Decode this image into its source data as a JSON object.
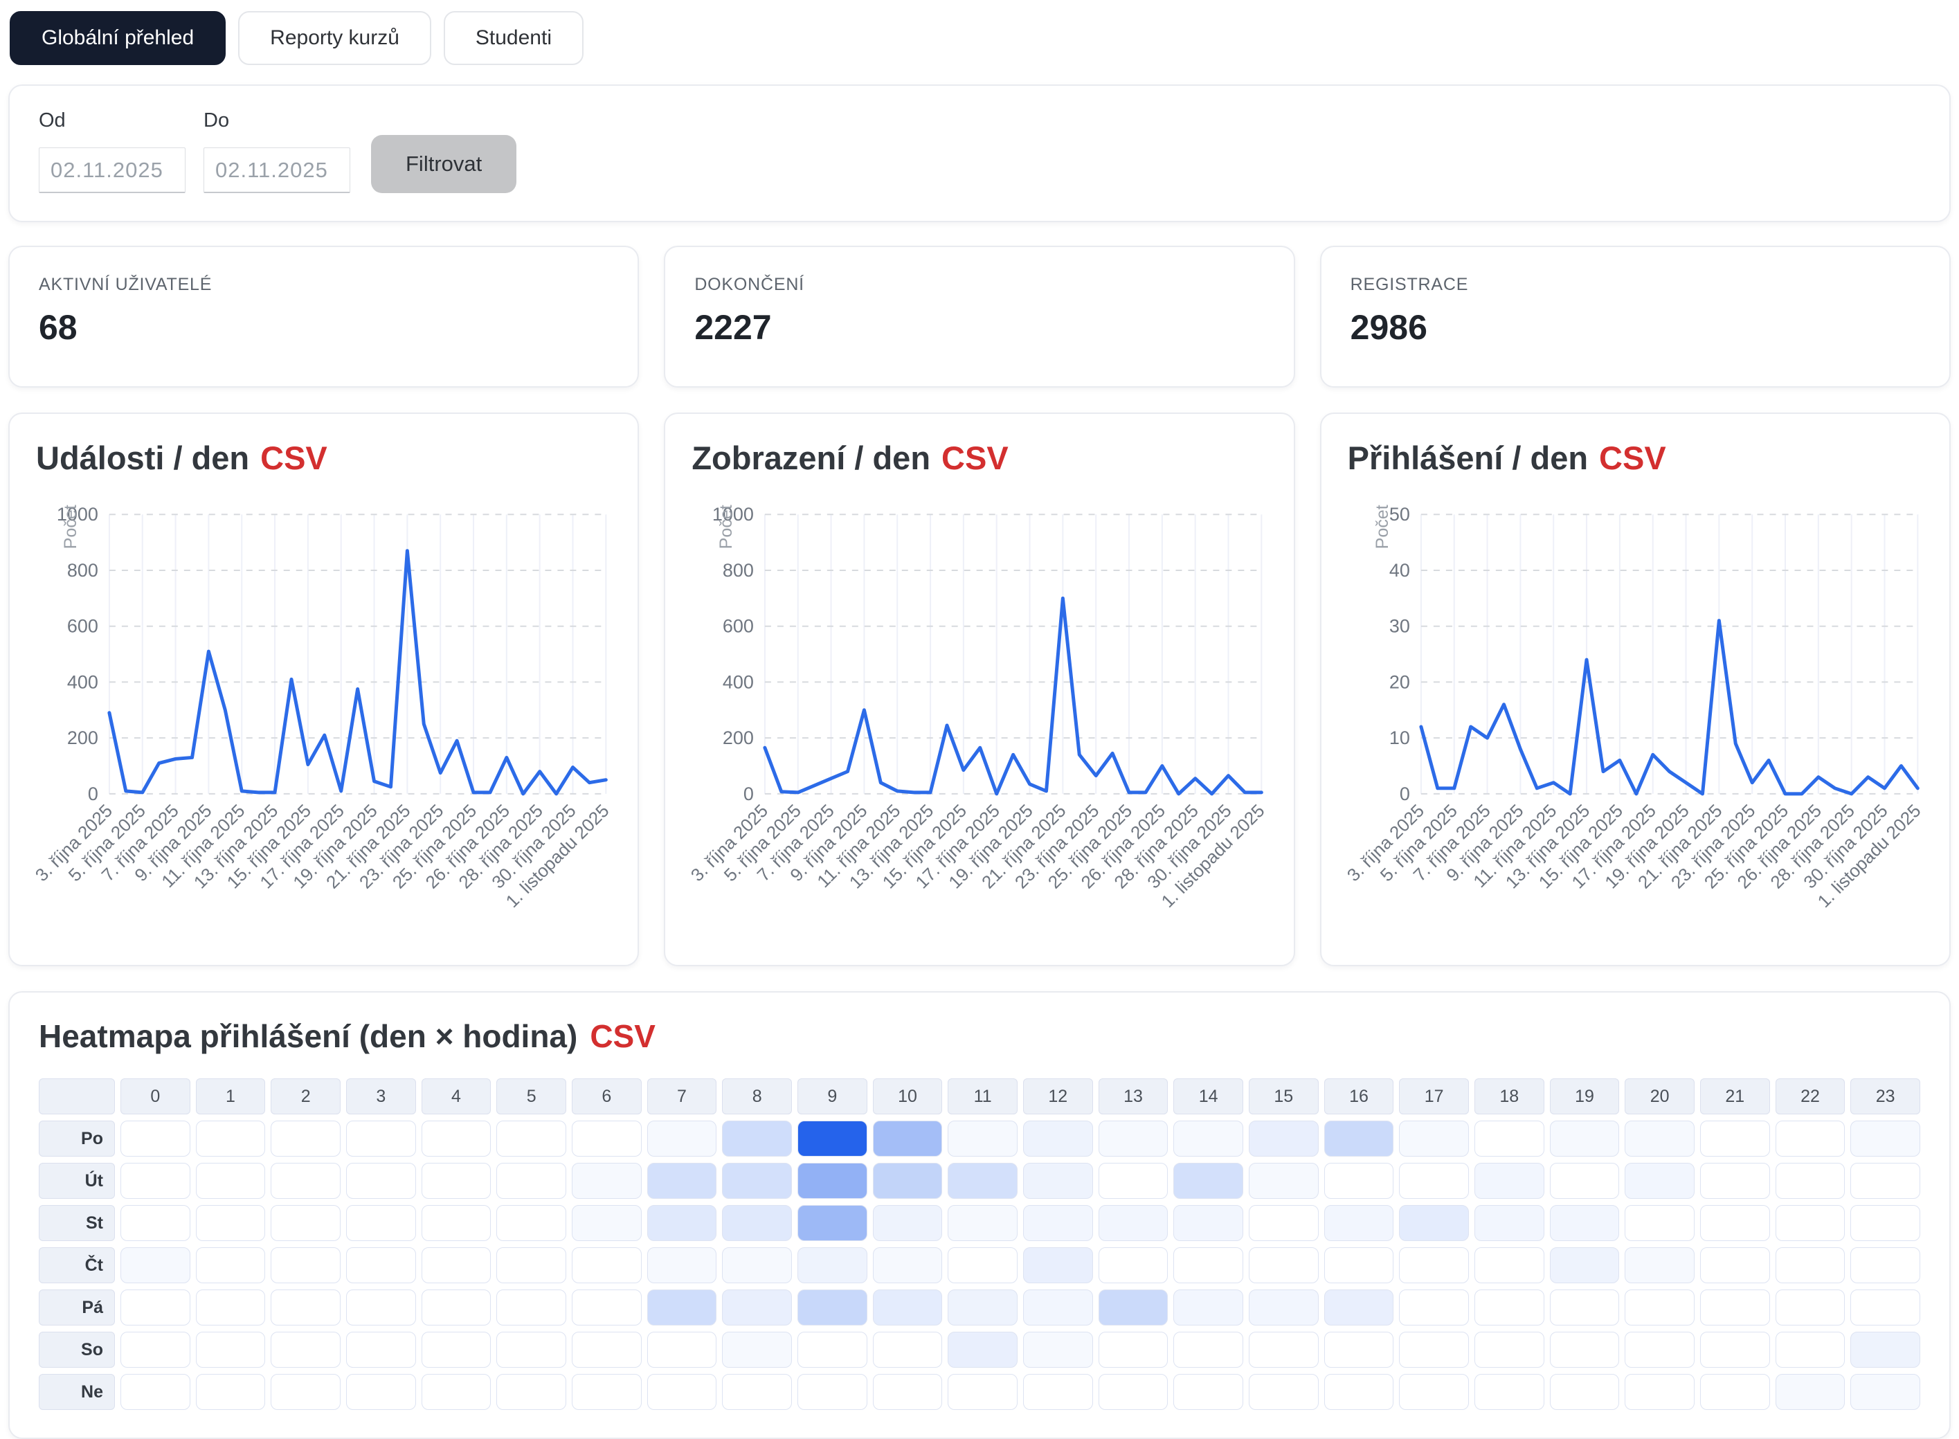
{
  "tabs": [
    {
      "label": "Globální přehled",
      "active": true
    },
    {
      "label": "Reporty kurzů",
      "active": false
    },
    {
      "label": "Studenti",
      "active": false
    }
  ],
  "filter": {
    "from_label": "Od",
    "to_label": "Do",
    "from_value": "02.11.2025",
    "to_value": "02.11.2025",
    "button_label": "Filtrovat"
  },
  "stats": [
    {
      "label": "AKTIVNÍ UŽIVATELÉ",
      "value": "68"
    },
    {
      "label": "DOKONČENÍ",
      "value": "2227"
    },
    {
      "label": "REGISTRACE",
      "value": "2986"
    }
  ],
  "colors": {
    "line_blue": "#2c6be8",
    "heat_blue": "#2563eb",
    "csv_red": "#d32f2f",
    "tab_dark": "#141c2e",
    "grid_vertical": "#eef0f8",
    "grid_dashed": "#d7dade",
    "axis_text": "#6f7680",
    "ylabel_text": "#9aa0a8"
  },
  "chart_data": {
    "line_charts": [
      {
        "type": "line",
        "title": "Události / den",
        "csv_link": "CSV",
        "ylabel": "Počet",
        "ylim": [
          0,
          1000
        ],
        "yticks": [
          0,
          200,
          400,
          600,
          800,
          1000
        ],
        "x_tick_labels": [
          "3. října 2025",
          "5. října 2025",
          "7. října 2025",
          "9. října 2025",
          "11. října 2025",
          "13. října 2025",
          "15. října 2025",
          "17. října 2025",
          "19. října 2025",
          "21. října 2025",
          "23. října 2025",
          "25. října 2025",
          "26. října 2025",
          "28. října 2025",
          "30. října 2025",
          "1. listopadu 2025"
        ],
        "values": [
          290,
          10,
          5,
          110,
          125,
          130,
          510,
          300,
          10,
          5,
          5,
          410,
          105,
          210,
          10,
          375,
          45,
          25,
          870,
          250,
          75,
          190,
          5,
          5,
          130,
          0,
          80,
          0,
          95,
          40,
          50
        ]
      },
      {
        "type": "line",
        "title": "Zobrazení / den",
        "csv_link": "CSV",
        "ylabel": "Počet",
        "ylim": [
          0,
          1000
        ],
        "yticks": [
          0,
          200,
          400,
          600,
          800,
          1000
        ],
        "x_tick_labels": [
          "3. října 2025",
          "5. října 2025",
          "7. října 2025",
          "9. října 2025",
          "11. října 2025",
          "13. října 2025",
          "15. října 2025",
          "17. října 2025",
          "19. října 2025",
          "21. října 2025",
          "23. října 2025",
          "25. října 2025",
          "26. října 2025",
          "28. října 2025",
          "30. října 2025",
          "1. listopadu 2025"
        ],
        "values": [
          165,
          8,
          5,
          30,
          55,
          80,
          300,
          40,
          10,
          5,
          5,
          245,
          85,
          165,
          0,
          140,
          35,
          10,
          700,
          140,
          65,
          145,
          5,
          5,
          100,
          0,
          55,
          0,
          65,
          5,
          5
        ]
      },
      {
        "type": "line",
        "title": "Přihlášení / den",
        "csv_link": "CSV",
        "ylabel": "Počet",
        "ylim": [
          0,
          50
        ],
        "yticks": [
          0,
          10,
          20,
          30,
          40,
          50
        ],
        "x_tick_labels": [
          "3. října 2025",
          "5. října 2025",
          "7. října 2025",
          "9. října 2025",
          "11. října 2025",
          "13. října 2025",
          "15. října 2025",
          "17. října 2025",
          "19. října 2025",
          "21. října 2025",
          "23. října 2025",
          "25. října 2025",
          "26. října 2025",
          "28. října 2025",
          "30. října 2025",
          "1. listopadu 2025"
        ],
        "values": [
          12,
          1,
          1,
          12,
          10,
          16,
          8,
          1,
          2,
          0,
          24,
          4,
          6,
          0,
          7,
          4,
          2,
          0,
          31,
          9,
          2,
          6,
          0,
          0,
          3,
          1,
          0,
          3,
          1,
          5,
          1
        ]
      }
    ],
    "heatmap": {
      "type": "heatmap",
      "title": "Heatmapa přihlášení (den × hodina)",
      "csv_link": "CSV",
      "row_labels": [
        "Po",
        "Út",
        "St",
        "Čt",
        "Pá",
        "So",
        "Ne"
      ],
      "col_labels": [
        "0",
        "1",
        "2",
        "3",
        "4",
        "5",
        "6",
        "7",
        "8",
        "9",
        "10",
        "11",
        "12",
        "13",
        "14",
        "15",
        "16",
        "17",
        "18",
        "19",
        "20",
        "21",
        "22",
        "23"
      ],
      "intensity_0_100": [
        [
          0,
          0,
          0,
          0,
          0,
          0,
          0,
          4,
          22,
          100,
          42,
          4,
          8,
          4,
          4,
          10,
          24,
          4,
          0,
          4,
          4,
          0,
          0,
          4
        ],
        [
          0,
          0,
          0,
          0,
          0,
          0,
          4,
          20,
          20,
          50,
          28,
          20,
          8,
          0,
          20,
          4,
          0,
          0,
          6,
          0,
          6,
          0,
          0,
          0
        ],
        [
          0,
          0,
          0,
          0,
          0,
          0,
          4,
          14,
          14,
          45,
          8,
          4,
          6,
          6,
          6,
          0,
          6,
          12,
          6,
          6,
          0,
          0,
          0,
          0
        ],
        [
          4,
          0,
          0,
          0,
          0,
          0,
          0,
          4,
          4,
          8,
          4,
          0,
          10,
          0,
          0,
          0,
          0,
          0,
          0,
          8,
          4,
          0,
          0,
          0
        ],
        [
          0,
          0,
          0,
          0,
          0,
          0,
          0,
          22,
          10,
          25,
          12,
          8,
          6,
          24,
          6,
          6,
          10,
          0,
          0,
          0,
          0,
          0,
          0,
          0
        ],
        [
          0,
          0,
          0,
          0,
          0,
          0,
          0,
          0,
          4,
          0,
          0,
          10,
          4,
          0,
          0,
          0,
          0,
          0,
          0,
          0,
          0,
          0,
          0,
          8
        ],
        [
          0,
          0,
          0,
          0,
          0,
          0,
          0,
          0,
          0,
          0,
          0,
          0,
          0,
          0,
          0,
          0,
          0,
          0,
          0,
          0,
          0,
          0,
          4,
          4
        ]
      ]
    }
  }
}
